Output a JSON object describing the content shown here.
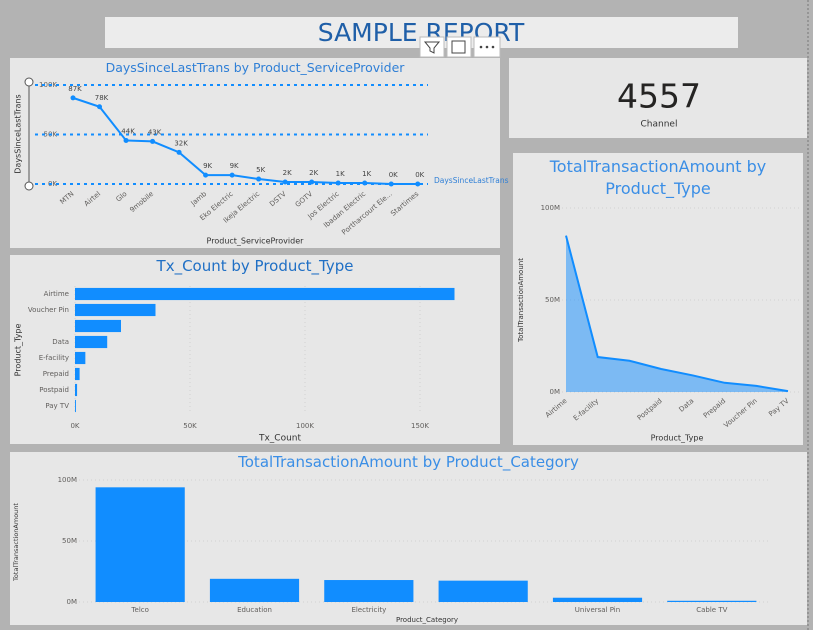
{
  "header": {
    "title": "SAMPLE REPORT"
  },
  "card": {
    "value": 4557,
    "label": "Channel"
  },
  "chart_data": [
    {
      "type": "line",
      "title": "DaysSinceLastTrans by Product_ServiceProvider",
      "x_label": "Product_ServiceProvider",
      "y_label": "DaysSinceLastTrans",
      "categories": [
        "MTN",
        "Airtel",
        "Glo",
        "9mobile",
        null,
        "Jamb",
        "Eko Electric",
        "Ikeja Electric",
        "DSTV",
        "GOTV",
        "Jos Electric",
        "Ibadan Electric",
        "Portharcourt Ele...",
        "Startimes"
      ],
      "series": [
        {
          "name": "DaysSinceLastTrans",
          "color": "#118dff",
          "values": [
            87000,
            78000,
            44000,
            43000,
            32000,
            9000,
            9000,
            5000,
            2000,
            2000,
            1000,
            1000,
            0,
            0
          ],
          "value_labels": [
            "87K",
            "78K",
            "44K",
            "43K",
            "32K",
            "9K",
            "9K",
            "5K",
            "2K",
            "2K",
            "1K",
            "1K",
            "0K",
            "0K"
          ]
        }
      ],
      "ylim": [
        0,
        100000
      ],
      "yticks": [
        {
          "value": 0,
          "label": "0K"
        },
        {
          "value": 50000,
          "label": "50K"
        },
        {
          "value": 100000,
          "label": "100K"
        }
      ],
      "grid": true
    },
    {
      "type": "bar",
      "horizontal": true,
      "title": "Tx_Count by Product_Type",
      "x_label": "Tx_Count",
      "y_label": "Product_Type",
      "categories": [
        "Airtime",
        "Voucher Pin",
        null,
        "Data",
        "E-facility",
        "Prepaid",
        "Postpaid",
        "Pay TV"
      ],
      "values": [
        165000,
        35000,
        20000,
        14000,
        4500,
        2000,
        900,
        400
      ],
      "color": "#118dff",
      "xlim": [
        0,
        180000
      ],
      "xticks": [
        {
          "value": 0,
          "label": "0K"
        },
        {
          "value": 50000,
          "label": "50K"
        },
        {
          "value": 100000,
          "label": "100K"
        },
        {
          "value": 150000,
          "label": "150K"
        }
      ],
      "grid": true
    },
    {
      "type": "area",
      "title": "TotalTransactionAmount by Product_Type",
      "x_label": "Product_Type",
      "y_label": "TotalTransactionAmount",
      "categories": [
        "Airtime",
        "E-facility",
        null,
        "Postpaid",
        "Data",
        "Prepaid",
        "Voucher Pin",
        "Pay TV"
      ],
      "values": [
        85000000,
        19000000,
        17000000,
        12500000,
        9000000,
        5000000,
        3300000,
        500000
      ],
      "color": "#118dff",
      "ylim": [
        0,
        100000000
      ],
      "yticks": [
        {
          "value": 0,
          "label": "0M"
        },
        {
          "value": 50000000,
          "label": "50M"
        },
        {
          "value": 100000000,
          "label": "100M"
        }
      ],
      "grid": true
    },
    {
      "type": "bar",
      "title": "TotalTransactionAmount by Product_Category",
      "x_label": "Product_Category",
      "y_label": "TotalTransactionAmount",
      "categories": [
        "Telco",
        "Education",
        "Electricity",
        null,
        "Universal Pin",
        "Cable TV"
      ],
      "values": [
        94000000,
        19000000,
        18000000,
        17500000,
        3500000,
        1000000
      ],
      "color": "#118dff",
      "ylim": [
        0,
        100000000
      ],
      "yticks": [
        {
          "value": 0,
          "label": "0M"
        },
        {
          "value": 50000000,
          "label": "50M"
        },
        {
          "value": 100000000,
          "label": "100M"
        }
      ],
      "grid": true
    }
  ]
}
